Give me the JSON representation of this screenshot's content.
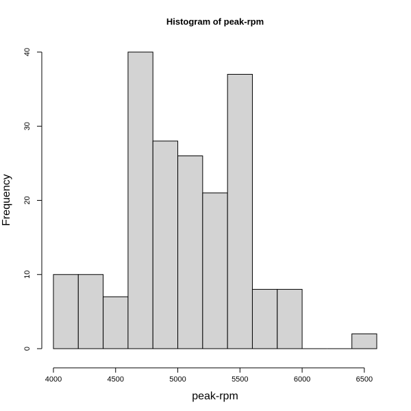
{
  "chart_data": {
    "type": "bar",
    "title": "Histogram of peak-rpm",
    "xlabel": "peak-rpm",
    "ylabel": "Frequency",
    "bin_edges": [
      4000,
      4200,
      4400,
      4600,
      4800,
      5000,
      5200,
      5400,
      5600,
      5800,
      6000,
      6200,
      6400,
      6600
    ],
    "values": [
      10,
      10,
      7,
      40,
      28,
      26,
      21,
      37,
      8,
      8,
      0,
      0,
      2
    ],
    "xlim": [
      4000,
      6600
    ],
    "ylim": [
      0,
      40
    ],
    "x_ticks": [
      4000,
      4500,
      5000,
      5500,
      6000,
      6500
    ],
    "y_ticks": [
      0,
      10,
      20,
      30,
      40
    ],
    "bar_color": "#d3d3d3",
    "grid": false
  }
}
